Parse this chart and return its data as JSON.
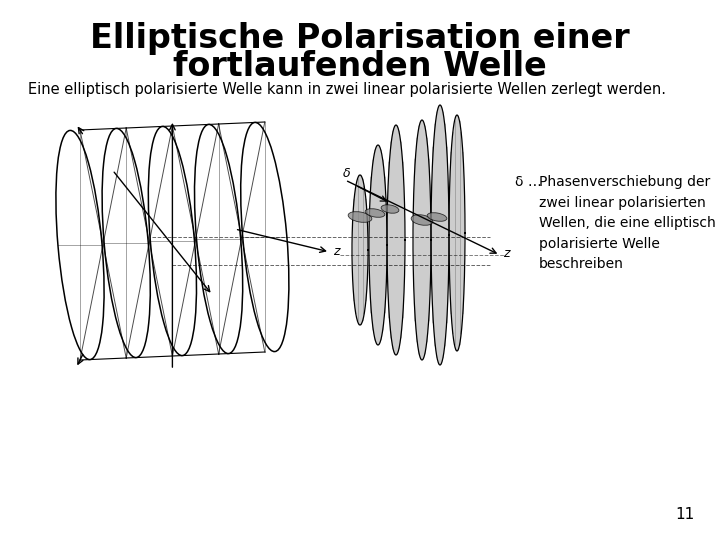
{
  "title_line1": "Elliptische Polarisation einer",
  "title_line2": "fortlaufenden Welle",
  "subtitle": "Eine elliptisch polarisierte Welle kann in zwei linear polarisierte Wellen zerlegt werden.",
  "annotation_symbol": "δ …",
  "annotation_text": "Phasenverschiebung der\nzwei linear polarisierten\nWellen, die eine elliptisch\npolarisierte Welle\nbeschreiben",
  "page_number": "11",
  "bg_color": "#ffffff",
  "text_color": "#000000",
  "title_fontsize": 24,
  "subtitle_fontsize": 10.5,
  "annotation_fontsize": 10,
  "page_fontsize": 11
}
